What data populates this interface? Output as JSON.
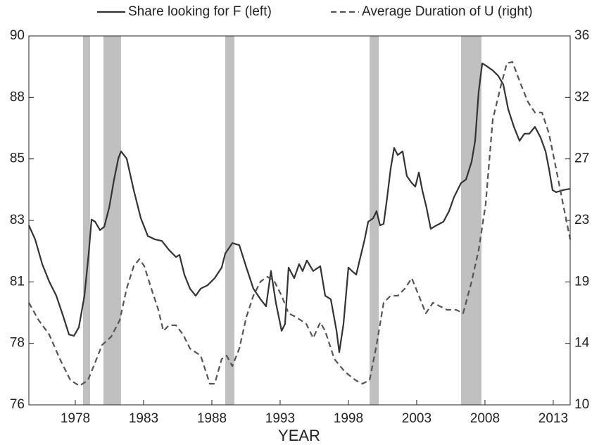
{
  "chart_data": {
    "type": "line",
    "x_label": "YEAR",
    "xlim": [
      1974.6,
      2014.24
    ],
    "xticks": [
      1978,
      1983,
      1988,
      1993,
      1998,
      2003,
      2008,
      2013
    ],
    "ylim": [
      76,
      90
    ],
    "yticks": [
      {
        "value": 76,
        "label": "76"
      },
      {
        "value": 78.333,
        "label": "78"
      },
      {
        "value": 80.667,
        "label": "81"
      },
      {
        "value": 83,
        "label": "83"
      },
      {
        "value": 85.333,
        "label": "85"
      },
      {
        "value": 87.667,
        "label": "88"
      },
      {
        "value": 90,
        "label": "90"
      }
    ],
    "y2lim": [
      10,
      36
    ],
    "y2ticks": [
      {
        "value": 10,
        "label": "10"
      },
      {
        "value": 14.333,
        "label": "14"
      },
      {
        "value": 18.667,
        "label": "19"
      },
      {
        "value": 23,
        "label": "23"
      },
      {
        "value": 27.333,
        "label": "27"
      },
      {
        "value": 31.667,
        "label": "32"
      },
      {
        "value": 36,
        "label": "36"
      }
    ],
    "shaded": [
      [
        1978.57,
        1979.08
      ],
      [
        1980.06,
        1981.35
      ],
      [
        1988.98,
        1989.65
      ],
      [
        1999.55,
        2000.22
      ],
      [
        2006.25,
        2007.74
      ]
    ],
    "shade_color": "#c0c0c0",
    "legend": "top",
    "series": [
      {
        "name": "Share looking for F (left)",
        "color": "#333333",
        "dash": false,
        "axis": "y",
        "x": [
          1974.6,
          1975.06,
          1975.58,
          1976.09,
          1976.61,
          1977.13,
          1977.54,
          1977.9,
          1978.26,
          1978.67,
          1978.98,
          1979.19,
          1979.45,
          1979.81,
          1980.12,
          1980.48,
          1980.84,
          1981.15,
          1981.35,
          1981.76,
          1982.28,
          1982.8,
          1983.31,
          1983.83,
          1984.34,
          1984.86,
          1985.37,
          1985.63,
          1985.99,
          1986.4,
          1986.82,
          1987.18,
          1987.69,
          1988.21,
          1988.72,
          1988.98,
          1989.5,
          1990.01,
          1990.53,
          1991.04,
          1991.56,
          1991.97,
          1992.33,
          1992.69,
          1993.11,
          1993.36,
          1993.62,
          1994.03,
          1994.39,
          1994.65,
          1994.96,
          1995.42,
          1995.94,
          1996.3,
          1996.71,
          1997.13,
          1997.33,
          1997.64,
          1998.0,
          1998.26,
          1998.57,
          1998.88,
          1999.19,
          1999.45,
          1999.81,
          2000.06,
          2000.32,
          2000.58,
          2000.84,
          2001.09,
          2001.35,
          2001.61,
          2001.97,
          2002.28,
          2002.64,
          2002.9,
          2003.16,
          2003.41,
          2003.72,
          2004.03,
          2004.45,
          2004.96,
          2005.37,
          2005.73,
          2006.25,
          2006.61,
          2007.02,
          2007.28,
          2007.54,
          2007.8,
          2008.05,
          2008.57,
          2008.98,
          2009.34,
          2009.7,
          2010.12,
          2010.53,
          2010.89,
          2011.25,
          2011.66,
          2012.07,
          2012.44,
          2012.69,
          2012.95,
          2013.21,
          2013.72,
          2014.24
        ],
        "values": [
          82.81,
          82.28,
          81.34,
          80.68,
          80.14,
          79.34,
          78.67,
          78.62,
          78.94,
          80.14,
          81.74,
          83.03,
          82.95,
          82.63,
          82.76,
          83.48,
          84.55,
          85.35,
          85.62,
          85.35,
          84.15,
          83.08,
          82.41,
          82.28,
          82.22,
          81.88,
          81.61,
          81.69,
          80.94,
          80.41,
          80.14,
          80.41,
          80.54,
          80.81,
          81.21,
          81.74,
          82.14,
          82.06,
          81.21,
          80.41,
          80.01,
          79.74,
          81.08,
          79.87,
          78.81,
          79.07,
          81.21,
          80.81,
          81.34,
          81.08,
          81.48,
          81.08,
          81.26,
          80.14,
          80.01,
          78.81,
          78.0,
          79.07,
          81.21,
          81.08,
          80.94,
          81.61,
          82.28,
          82.95,
          83.08,
          83.35,
          82.81,
          82.87,
          83.88,
          84.95,
          85.75,
          85.48,
          85.62,
          84.68,
          84.42,
          84.28,
          84.82,
          84.15,
          83.48,
          82.68,
          82.81,
          82.95,
          83.35,
          83.88,
          84.42,
          84.55,
          85.22,
          86.02,
          87.89,
          88.96,
          88.88,
          88.69,
          88.48,
          88.16,
          87.22,
          86.55,
          86.02,
          86.29,
          86.29,
          86.55,
          86.15,
          85.62,
          84.95,
          84.15,
          84.07,
          84.15,
          84.2
        ]
      },
      {
        "name": "Average Duration of U (right)",
        "color": "#555555",
        "dash": true,
        "axis": "y2",
        "x": [
          1974.6,
          1975.32,
          1976.09,
          1976.87,
          1977.64,
          1978.31,
          1978.93,
          1979.45,
          1979.96,
          1980.63,
          1981.25,
          1981.76,
          1982.28,
          1982.69,
          1983.05,
          1983.57,
          1984.08,
          1984.45,
          1984.86,
          1985.37,
          1985.89,
          1986.4,
          1987.18,
          1987.85,
          1988.21,
          1988.72,
          1989.08,
          1989.5,
          1990.01,
          1990.53,
          1991.04,
          1991.56,
          1992.07,
          1992.59,
          1993.11,
          1993.62,
          1994.14,
          1994.91,
          1995.42,
          1995.94,
          1996.3,
          1996.97,
          1997.74,
          1998.52,
          1999.03,
          1999.55,
          2000.06,
          2000.58,
          2001.09,
          2001.61,
          2002.13,
          2002.64,
          2003.16,
          2003.67,
          2004.19,
          2004.7,
          2005.22,
          2005.89,
          2006.4,
          2007.02,
          2007.54,
          2008.05,
          2008.57,
          2009.19,
          2009.6,
          2010.01,
          2010.63,
          2011.15,
          2011.66,
          2012.18,
          2012.69,
          2013.21,
          2013.72,
          2014.24
        ],
        "values": [
          17.2,
          15.96,
          14.96,
          13.23,
          11.74,
          11.34,
          11.74,
          12.98,
          14.22,
          14.81,
          15.96,
          18.19,
          19.78,
          20.27,
          19.78,
          18.19,
          16.7,
          15.21,
          15.61,
          15.61,
          14.96,
          13.97,
          13.47,
          11.49,
          11.49,
          13.23,
          13.47,
          12.73,
          13.97,
          16.2,
          17.69,
          18.68,
          19.03,
          18.68,
          17.69,
          16.45,
          16.2,
          15.71,
          14.71,
          15.81,
          15.21,
          13.23,
          12.33,
          11.74,
          11.49,
          11.74,
          14.22,
          17.2,
          17.69,
          17.69,
          18.19,
          18.93,
          17.69,
          16.45,
          17.2,
          16.95,
          16.7,
          16.7,
          16.45,
          18.68,
          20.92,
          24.14,
          30.1,
          32.58,
          34.07,
          34.17,
          32.58,
          31.34,
          30.6,
          30.6,
          29.11,
          26.63,
          24.14,
          21.66
        ]
      }
    ]
  }
}
